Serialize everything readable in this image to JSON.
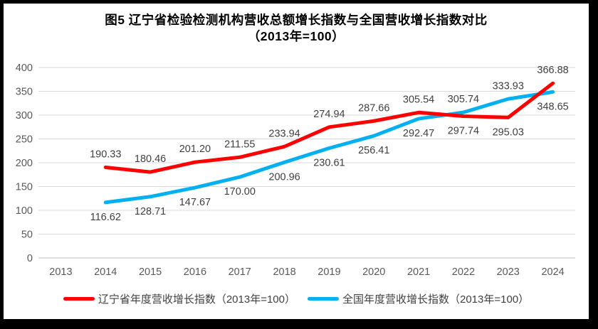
{
  "title": {
    "line1": "图5  辽宁省检验检测机构营收总额增长指数与全国营收增长指数对比",
    "line2": "（2013年=100）"
  },
  "chart_data": {
    "type": "line",
    "categories": [
      "2013",
      "2014",
      "2015",
      "2016",
      "2017",
      "2018",
      "2019",
      "2020",
      "2021",
      "2022",
      "2023",
      "2024"
    ],
    "series": [
      {
        "id": "liaoning",
        "name": "辽宁省年度营收增长指数（2013年=100）",
        "color": "#FF0000",
        "values": [
          null,
          190.33,
          180.46,
          201.2,
          211.55,
          233.94,
          274.94,
          287.66,
          305.54,
          297.74,
          295.03,
          366.88
        ],
        "labels": [
          null,
          "190.33",
          "180.46",
          "201.20",
          "211.55",
          "233.94",
          "274.94",
          "287.66",
          "305.54",
          "297.74",
          "295.03",
          "366.88"
        ],
        "label_side": [
          null,
          "above",
          "above",
          "above",
          "above",
          "above",
          "above",
          "above",
          "above",
          "below",
          "below",
          "above"
        ]
      },
      {
        "id": "national",
        "name": "全国年度营收增长指数（2013年=100）",
        "color": "#00B0F0",
        "values": [
          null,
          116.62,
          128.71,
          147.67,
          170.0,
          200.96,
          230.61,
          256.41,
          292.47,
          305.74,
          333.93,
          348.65
        ],
        "labels": [
          null,
          "116.62",
          "128.71",
          "147.67",
          "170.00",
          "200.96",
          "230.61",
          "256.41",
          "292.47",
          "305.74",
          "333.93",
          "348.65"
        ],
        "label_side": [
          null,
          "below",
          "below",
          "below",
          "below",
          "below",
          "below",
          "below",
          "below",
          "above",
          "above",
          "below"
        ]
      }
    ],
    "ylim": [
      0,
      400
    ],
    "y_ticks": [
      "0",
      "50",
      "100",
      "150",
      "200",
      "250",
      "300",
      "350",
      "400"
    ],
    "grid": true,
    "legend_position": "bottom",
    "grid_color": "#D9D9D9",
    "axis_color": "#BFBFBF",
    "tick_color": "#595959",
    "label_color": "#404040"
  }
}
